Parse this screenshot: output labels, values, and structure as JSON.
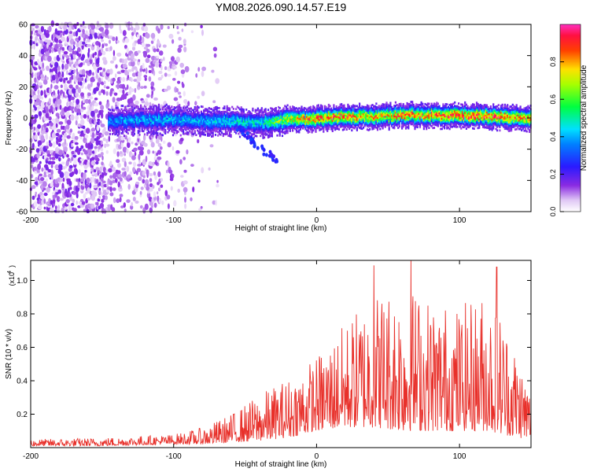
{
  "title": "YM08.2026.090.14.57.E19",
  "chart_data": [
    {
      "type": "heatmap",
      "name": "spectrogram",
      "xlabel": "Height of straight line (km)",
      "ylabel": "Frequency (Hz)",
      "xlim": [
        -200,
        150
      ],
      "ylim": [
        -60,
        60
      ],
      "xticks": [
        -200,
        -100,
        0,
        100
      ],
      "yticks": [
        -60,
        -40,
        -20,
        0,
        20,
        40,
        60
      ],
      "x_tick_labels": [
        "-200",
        "-100",
        "0",
        "100"
      ],
      "y_tick_labels": [
        "-60",
        "-40",
        "-20",
        "0",
        "20",
        "40",
        "60"
      ],
      "colorbar": {
        "label": "Normalized spectral amplitude",
        "range": [
          0,
          1
        ],
        "ticks": [
          0.0,
          0.2,
          0.4,
          0.6,
          0.8
        ],
        "tick_labels": [
          "0.0",
          "0.2",
          "0.4",
          "0.6",
          "0.8"
        ],
        "colormap": [
          "#ffffff",
          "#8a2be2",
          "#0000ff",
          "#00ffff",
          "#00ff00",
          "#ffff00",
          "#ff0000",
          "#ff33cc"
        ]
      },
      "signal_track": {
        "description_values_in_data_units": true,
        "x": [
          -145,
          -120,
          -100,
          -80,
          -60,
          -40,
          -20,
          0,
          20,
          40,
          60,
          80,
          100,
          120,
          148
        ],
        "center_hz": [
          -2,
          -1,
          -1,
          -2,
          -2,
          -3,
          -1,
          0,
          1,
          1,
          2,
          2,
          2,
          1,
          0
        ],
        "peak_amplitude": [
          0.35,
          0.4,
          0.4,
          0.4,
          0.45,
          0.45,
          0.7,
          0.85,
          0.8,
          0.75,
          0.8,
          0.8,
          0.85,
          0.85,
          0.8
        ]
      },
      "noise_region_x": [
        -200,
        -75
      ],
      "tail": {
        "x": [
          -55,
          -28
        ],
        "hz": [
          -10,
          -28
        ]
      }
    },
    {
      "type": "line",
      "name": "snr",
      "xlabel": "Height of straight line (km)",
      "ylabel": "SNR (10 * v/v)",
      "y_scale_label": "(x10",
      "y_scale_exponent": "4",
      "xlim": [
        -200,
        150
      ],
      "ylim": [
        0,
        1.12
      ],
      "xticks": [
        -200,
        -100,
        0,
        100
      ],
      "x_tick_labels": [
        "-200",
        "-100",
        "0",
        "100"
      ],
      "yticks": [
        0.2,
        0.4,
        0.6,
        0.8,
        1.0
      ],
      "y_tick_labels": [
        "0.2",
        "0.4",
        "0.6",
        "0.8",
        "1.0"
      ],
      "color": "#e8302a",
      "envelope": {
        "x": [
          -200,
          -150,
          -100,
          -80,
          -60,
          -40,
          -20,
          0,
          20,
          40,
          60,
          80,
          100,
          120,
          130,
          140,
          150
        ],
        "upper": [
          0.05,
          0.06,
          0.08,
          0.12,
          0.2,
          0.32,
          0.42,
          0.55,
          0.75,
          0.95,
          1.0,
          0.9,
          0.85,
          0.95,
          0.8,
          0.6,
          0.35
        ],
        "lower": [
          0.01,
          0.01,
          0.02,
          0.02,
          0.03,
          0.04,
          0.06,
          0.1,
          0.12,
          0.12,
          0.1,
          0.1,
          0.1,
          0.1,
          0.08,
          0.06,
          0.05
        ]
      },
      "notable_peaks": [
        {
          "x": 40,
          "y": 1.09
        },
        {
          "x": 66,
          "y": 1.12
        },
        {
          "x": 126,
          "y": 1.08
        }
      ]
    }
  ]
}
